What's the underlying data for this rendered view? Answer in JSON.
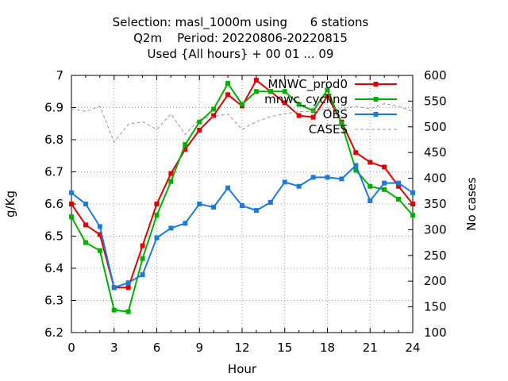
{
  "chart_data": {
    "type": "line",
    "title_lines": [
      "Selection: masl_1000m using      6 stations",
      "Q2m    Period: 20220806-20220815",
      "Used {All hours} + 00 01 ... 09"
    ],
    "xlabel": "Hour",
    "ylabel": "g/Kg",
    "y2label": "No cases",
    "xlim": [
      0,
      24
    ],
    "ylim": [
      6.2,
      7.0
    ],
    "y2lim": [
      100,
      600
    ],
    "x_ticks": [
      0,
      3,
      6,
      9,
      12,
      15,
      18,
      21,
      24
    ],
    "y_ticks": [
      "6.2",
      "6.3",
      "6.4",
      "6.5",
      "6.6",
      "6.7",
      "6.8",
      "6.9",
      "7"
    ],
    "y2_ticks": [
      "100",
      "150",
      "200",
      "250",
      "300",
      "350",
      "400",
      "450",
      "500",
      "550",
      "600"
    ],
    "grid": true,
    "legend_position": "top-right",
    "x": [
      0,
      1,
      2,
      3,
      4,
      5,
      6,
      7,
      8,
      9,
      10,
      11,
      12,
      13,
      14,
      15,
      16,
      17,
      18,
      19,
      20,
      21,
      22,
      23,
      24
    ],
    "series": [
      {
        "name": "MNWC_prod0",
        "color": "#e00000",
        "axis": "y",
        "values": [
          6.6,
          6.535,
          6.505,
          6.34,
          6.34,
          6.47,
          6.6,
          6.695,
          6.77,
          6.83,
          6.875,
          6.94,
          6.905,
          6.985,
          6.95,
          6.915,
          6.875,
          6.87,
          6.935,
          6.855,
          6.76,
          6.73,
          6.715,
          6.655,
          6.6
        ]
      },
      {
        "name": "mnwc_cycling",
        "color": "#00b000",
        "axis": "y",
        "values": [
          6.56,
          6.48,
          6.455,
          6.27,
          6.265,
          6.43,
          6.565,
          6.67,
          6.785,
          6.855,
          6.895,
          6.975,
          6.91,
          6.95,
          6.95,
          6.95,
          6.91,
          6.89,
          6.955,
          6.85,
          6.705,
          6.655,
          6.645,
          6.615,
          6.565
        ]
      },
      {
        "name": "OBS",
        "color": "#1a7ae0",
        "axis": "y",
        "values": [
          6.635,
          6.6,
          6.53,
          6.34,
          6.355,
          6.38,
          6.495,
          6.525,
          6.54,
          6.6,
          6.59,
          6.65,
          6.595,
          6.58,
          6.605,
          6.668,
          6.655,
          6.683,
          6.683,
          6.678,
          6.72,
          6.61,
          6.665,
          6.665,
          6.635
        ]
      },
      {
        "name": "CASES",
        "color": "#999999",
        "axis": "y2",
        "values": [
          535,
          530,
          540,
          470,
          505,
          510,
          495,
          525,
          485,
          515,
          520,
          525,
          495,
          510,
          520,
          525,
          530,
          530,
          535,
          535,
          540,
          535,
          545,
          540,
          530
        ]
      }
    ]
  }
}
